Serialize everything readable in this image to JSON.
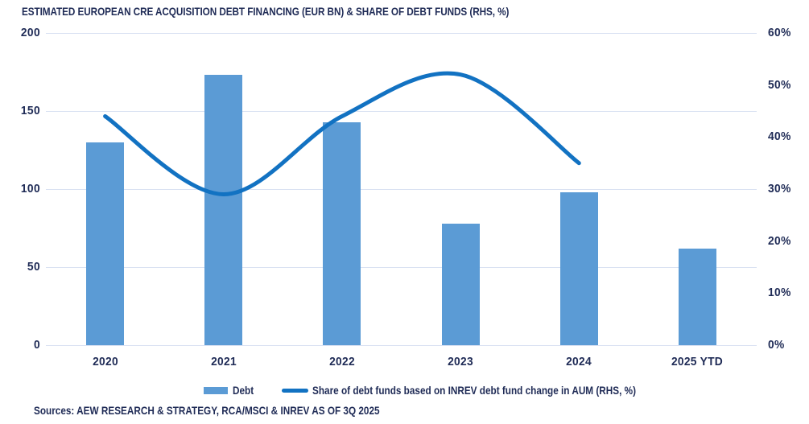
{
  "title": "ESTIMATED EUROPEAN CRE ACQUISITION DEBT FINANCING (EUR BN) & SHARE OF DEBT FUNDS (RHS, %)",
  "source": "Sources: AEW RESEARCH & STRATEGY, RCA/MSCI & INREV AS OF 3Q 2025",
  "legend": {
    "bar_label": "Debt",
    "line_label": "Share of debt funds based on INREV debt fund change in AUM (RHS, %)"
  },
  "colors": {
    "bar": "#5B9BD5",
    "line": "#1272C2",
    "text": "#1F2B56",
    "gridline": "#D9E1F2"
  },
  "chart_data": {
    "type": "bar",
    "subtype": "bar-with-smooth-line-overlay",
    "categories": [
      "2020",
      "2021",
      "2022",
      "2023",
      "2024",
      "2025 YTD"
    ],
    "series": [
      {
        "name": "Debt",
        "type": "bar",
        "axis": "left",
        "values": [
          130,
          173,
          143,
          78,
          98,
          62
        ]
      },
      {
        "name": "Share of debt funds based on INREV debt fund change in AUM (RHS, %)",
        "type": "line",
        "axis": "right",
        "smooth": true,
        "values": [
          44,
          29,
          44,
          52,
          35,
          null
        ]
      }
    ],
    "left_axis": {
      "min": 0,
      "max": 200,
      "step": 50,
      "tick_labels": [
        "0",
        "50",
        "100",
        "150",
        "200"
      ]
    },
    "right_axis": {
      "min": 0,
      "max": 60,
      "step": 10,
      "tick_labels": [
        "0%",
        "10%",
        "20%",
        "30%",
        "40%",
        "50%",
        "60%"
      ]
    },
    "grid": "horizontal gridlines at left-axis steps only",
    "legend_position": "bottom-center"
  }
}
